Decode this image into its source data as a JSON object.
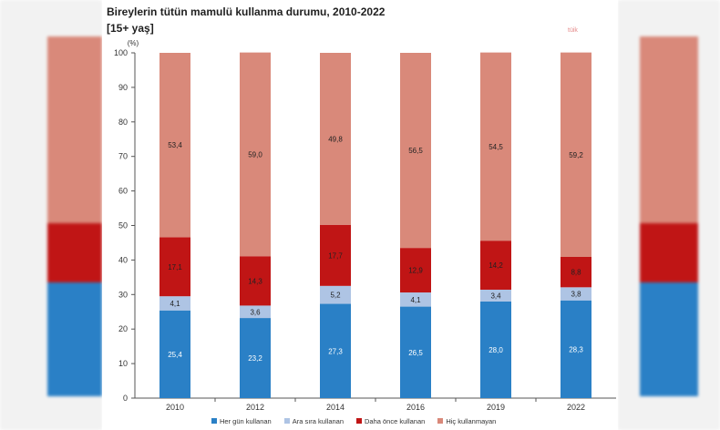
{
  "chart_data": {
    "type": "bar",
    "stacked": true,
    "title": "Bireylerin tütün mamulü kullanma durumu, 2010-2022",
    "subtitle": "[15+ yaş]",
    "y_unit": "(%)",
    "ylim": [
      0,
      100
    ],
    "yticks": [
      0,
      10,
      20,
      30,
      40,
      50,
      60,
      70,
      80,
      90,
      100
    ],
    "categories": [
      "2010",
      "2012",
      "2014",
      "2016",
      "2019",
      "2022"
    ],
    "series": [
      {
        "name": "Her gün kullanan",
        "color": "#2a80c6",
        "values": [
          25.4,
          23.2,
          27.3,
          26.5,
          28.0,
          28.3
        ],
        "labels": [
          "25,4",
          "23,2",
          "27,3",
          "26,5",
          "28,0",
          "28,3"
        ],
        "label_color": "#ffffff"
      },
      {
        "name": "Ara sıra kullanan",
        "color": "#aec4e4",
        "values": [
          4.1,
          3.6,
          5.2,
          4.1,
          3.4,
          3.8
        ],
        "labels": [
          "4,1",
          "3,6",
          "5,2",
          "4,1",
          "3,4",
          "3,8"
        ],
        "label_color": "#222222"
      },
      {
        "name": "Daha önce kullanan",
        "color": "#c01515",
        "values": [
          17.1,
          14.3,
          17.7,
          12.9,
          14.2,
          8.8
        ],
        "labels": [
          "17,1",
          "14,3",
          "17,7",
          "12,9",
          "14,2",
          "8,8"
        ],
        "label_color": "#222222"
      },
      {
        "name": "Hiç kullanmayan",
        "color": "#d9897a",
        "values": [
          53.4,
          59.0,
          49.8,
          56.5,
          54.5,
          59.2
        ],
        "labels": [
          "53,4",
          "59,0",
          "49,8",
          "56,5",
          "54,5",
          "59,2"
        ],
        "label_color": "#222222"
      }
    ],
    "grid": false,
    "legend_position": "bottom"
  },
  "watermark": "tüik"
}
